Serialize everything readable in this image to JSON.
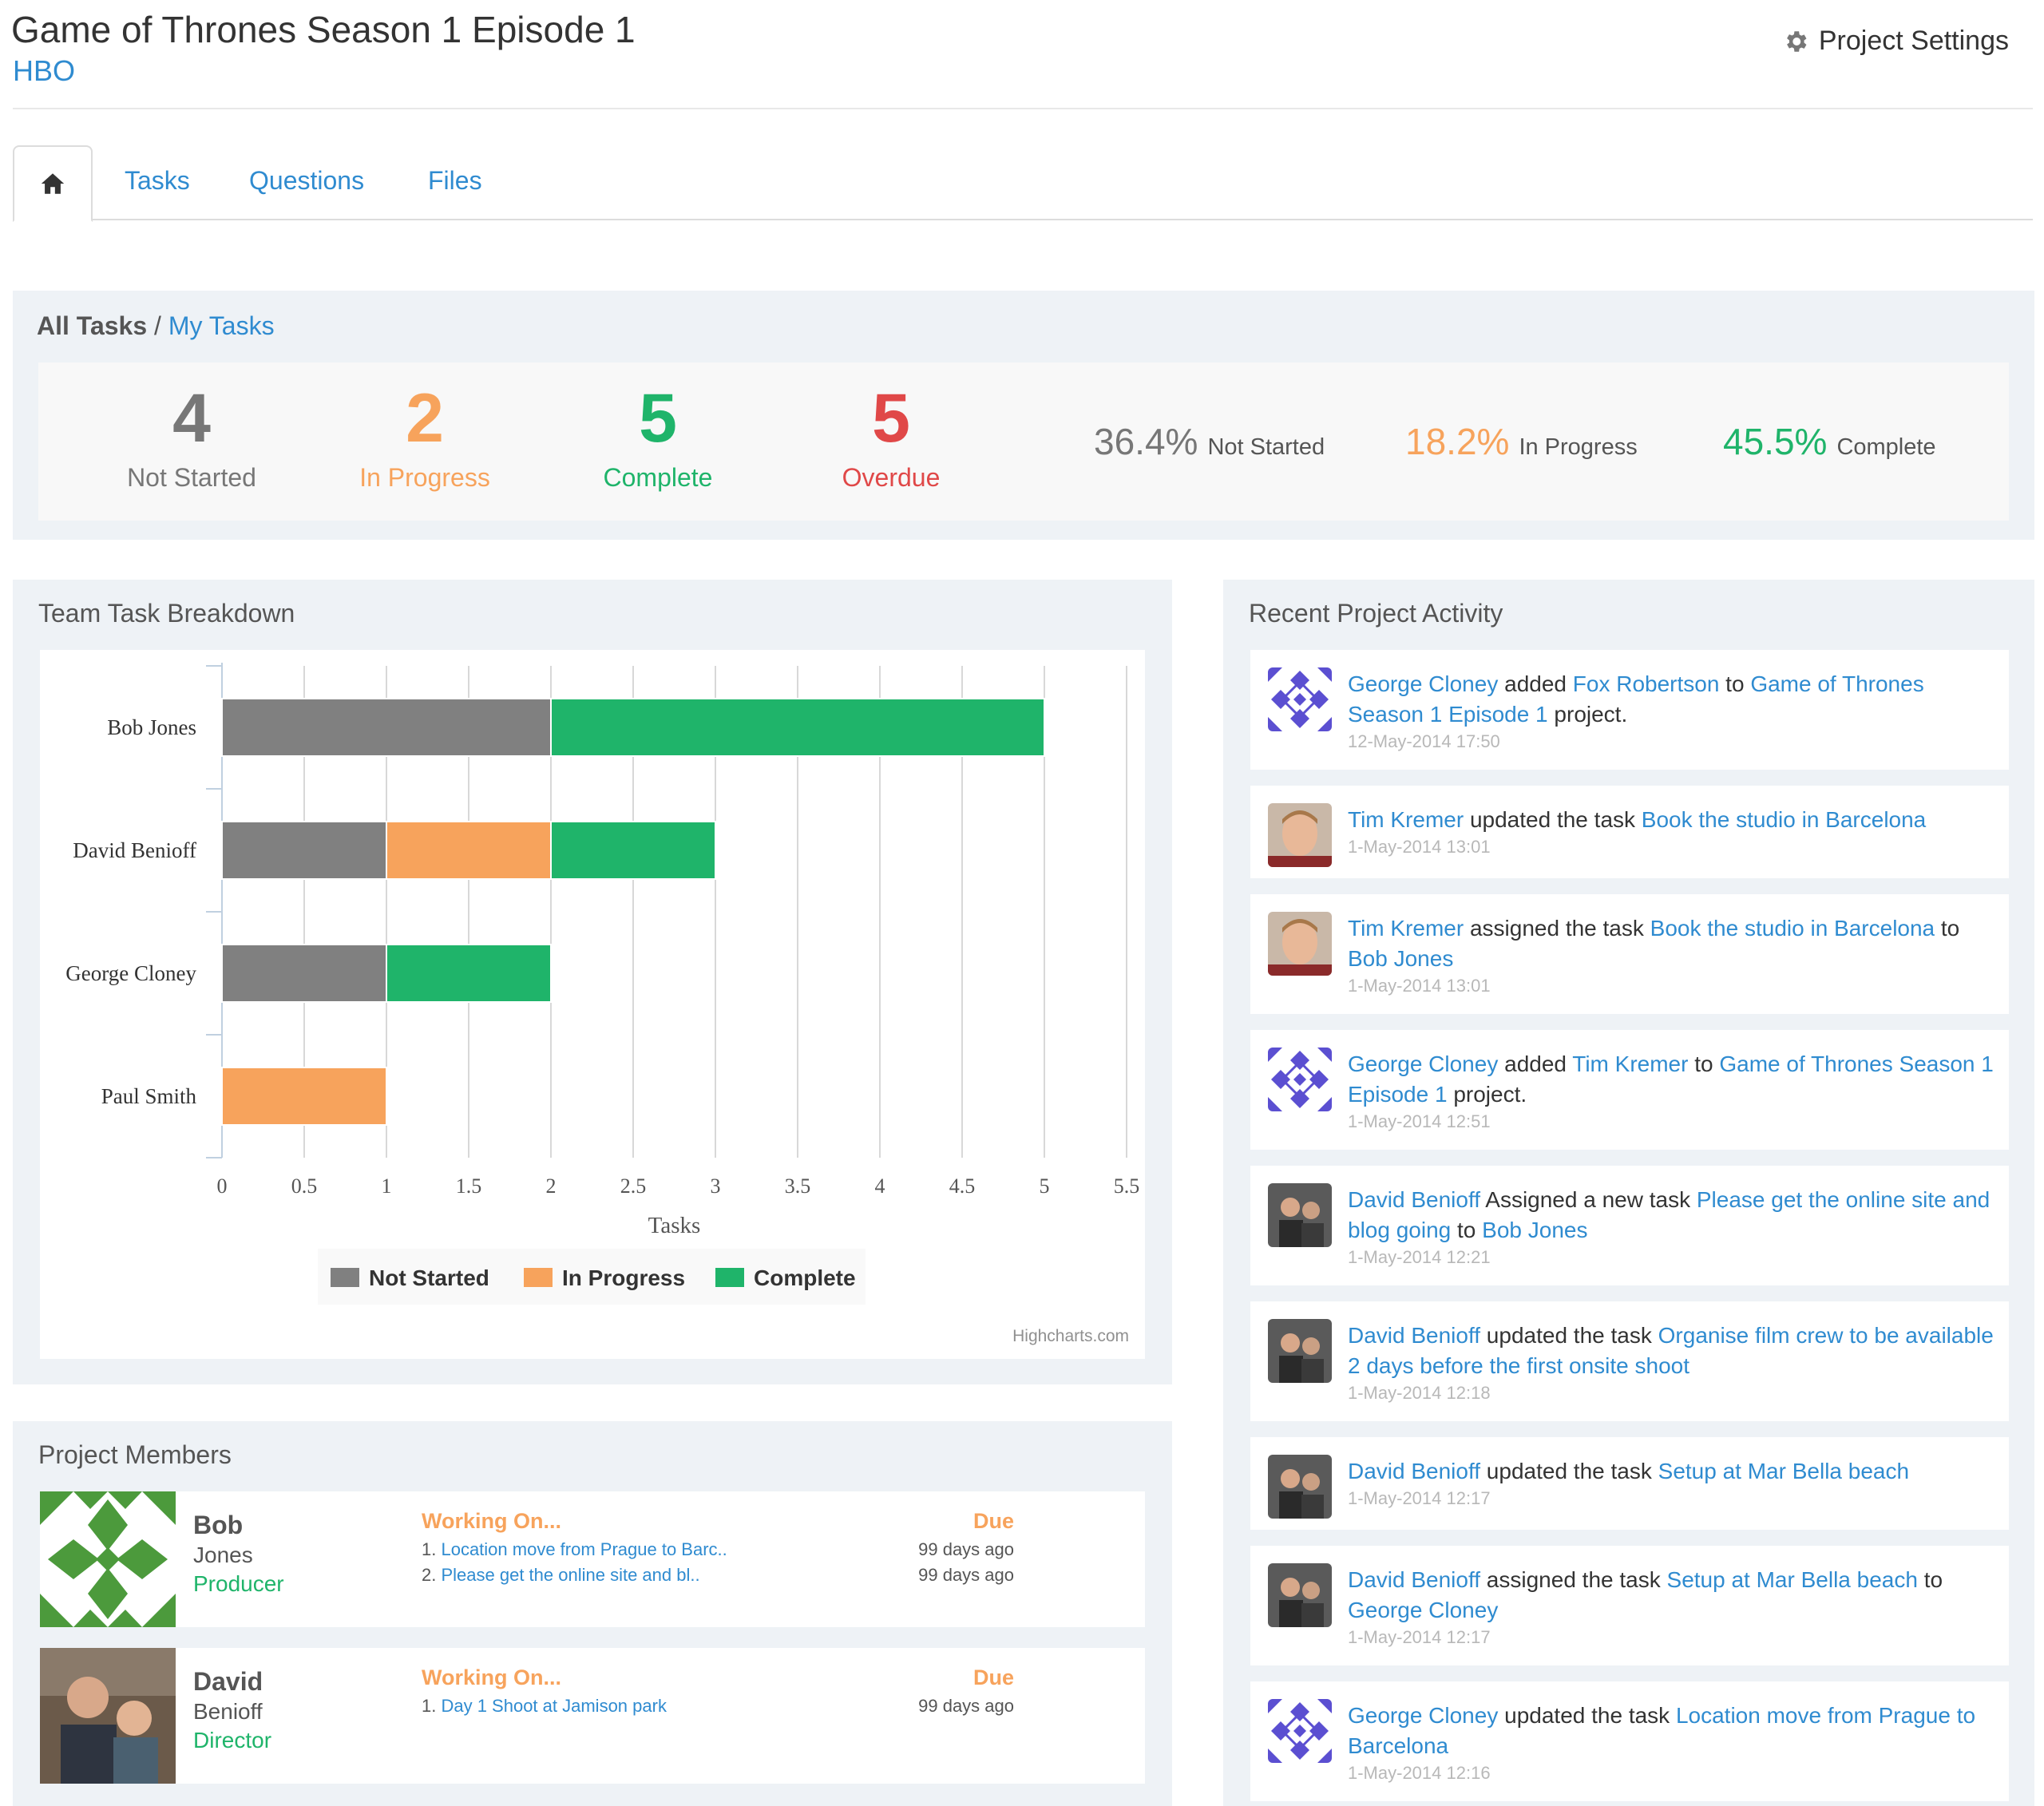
{
  "header": {
    "title": "Game of Thrones Season 1 Episode 1",
    "client": "HBO",
    "settings_label": "Project Settings"
  },
  "tabs": [
    {
      "label": "Tasks"
    },
    {
      "label": "Questions"
    },
    {
      "label": "Files"
    }
  ],
  "filter": {
    "all": "All Tasks",
    "sep": " / ",
    "mine": "My Tasks"
  },
  "stats": {
    "not_started": {
      "value": "4",
      "label": "Not Started"
    },
    "in_progress": {
      "value": "2",
      "label": "In Progress"
    },
    "complete": {
      "value": "5",
      "label": "Complete"
    },
    "overdue": {
      "value": "5",
      "label": "Overdue"
    }
  },
  "percents": {
    "not_started": {
      "value": "36.4%",
      "label": "Not Started"
    },
    "in_progress": {
      "value": "18.2%",
      "label": "In Progress"
    },
    "complete": {
      "value": "45.5%",
      "label": "Complete"
    }
  },
  "colors": {
    "not_started": "#808080",
    "in_progress": "#f7a35c",
    "complete": "#1fb46a",
    "overdue": "#e04848",
    "link": "#2f8bd0"
  },
  "chart_panel": {
    "title": "Team Task Breakdown",
    "credit": "Highcharts.com"
  },
  "chart_data": {
    "type": "bar",
    "stacked": true,
    "orientation": "horizontal",
    "categories": [
      "Bob Jones",
      "David Benioff",
      "George Cloney",
      "Paul Smith"
    ],
    "series": [
      {
        "name": "Not Started",
        "color": "#808080",
        "values": [
          2,
          1,
          1,
          0
        ]
      },
      {
        "name": "In Progress",
        "color": "#f7a35c",
        "values": [
          0,
          1,
          0,
          1
        ]
      },
      {
        "name": "Complete",
        "color": "#1fb46a",
        "values": [
          3,
          1,
          1,
          0
        ]
      }
    ],
    "xlabel": "Tasks",
    "xlim": [
      0,
      5.5
    ],
    "xticks": [
      "0",
      "0.5",
      "1",
      "1.5",
      "2",
      "2.5",
      "3",
      "3.5",
      "4",
      "4.5",
      "5",
      "5.5"
    ],
    "grid": true,
    "legend": "bottom-center"
  },
  "activity": {
    "title": "Recent Project Activity",
    "items": [
      {
        "avatar": "pattern",
        "parts": [
          [
            "George Cloney",
            true
          ],
          [
            " added ",
            false
          ],
          [
            "Fox Robertson",
            true
          ],
          [
            " to ",
            false
          ],
          [
            "Game of Thrones Season 1 Episode 1",
            true
          ],
          [
            " project.",
            false
          ]
        ],
        "time": "12-May-2014 17:50"
      },
      {
        "avatar": "photo",
        "parts": [
          [
            "Tim Kremer",
            true
          ],
          [
            " updated the task ",
            false
          ],
          [
            "Book the studio in Barcelona",
            true
          ]
        ],
        "time": "1-May-2014 13:01"
      },
      {
        "avatar": "photo",
        "parts": [
          [
            "Tim Kremer",
            true
          ],
          [
            " assigned the task ",
            false
          ],
          [
            "Book the studio in Barcelona",
            true
          ],
          [
            " to ",
            false
          ],
          [
            "Bob Jones",
            true
          ]
        ],
        "time": "1-May-2014 13:01"
      },
      {
        "avatar": "pattern",
        "parts": [
          [
            "George Cloney",
            true
          ],
          [
            " added ",
            false
          ],
          [
            "Tim Kremer",
            true
          ],
          [
            " to ",
            false
          ],
          [
            "Game of Thrones Season 1 Episode 1",
            true
          ],
          [
            " project.",
            false
          ]
        ],
        "time": "1-May-2014 12:51"
      },
      {
        "avatar": "photo2",
        "parts": [
          [
            "David Benioff",
            true
          ],
          [
            " Assigned a new task ",
            false
          ],
          [
            "Please get the online site and blog going",
            true
          ],
          [
            " to ",
            false
          ],
          [
            "Bob Jones",
            true
          ]
        ],
        "time": "1-May-2014 12:21"
      },
      {
        "avatar": "photo2",
        "parts": [
          [
            "David Benioff",
            true
          ],
          [
            " updated the task ",
            false
          ],
          [
            "Organise film crew to be available 2 days before the first onsite shoot",
            true
          ]
        ],
        "time": "1-May-2014 12:18"
      },
      {
        "avatar": "photo2",
        "parts": [
          [
            "David Benioff",
            true
          ],
          [
            " updated the task ",
            false
          ],
          [
            "Setup at Mar Bella beach",
            true
          ]
        ],
        "time": "1-May-2014 12:17"
      },
      {
        "avatar": "photo2",
        "parts": [
          [
            "David Benioff",
            true
          ],
          [
            " assigned the task ",
            false
          ],
          [
            "Setup at Mar Bella beach",
            true
          ],
          [
            " to ",
            false
          ],
          [
            "George Cloney",
            true
          ]
        ],
        "time": "1-May-2014 12:17"
      },
      {
        "avatar": "pattern",
        "parts": [
          [
            "George Cloney",
            true
          ],
          [
            " updated the task ",
            false
          ],
          [
            "Location move from Prague to Barcelona",
            true
          ]
        ],
        "time": "1-May-2014 12:16"
      }
    ]
  },
  "members": {
    "title": "Project Members",
    "working_label": "Working On...",
    "due_label": "Due",
    "list": [
      {
        "first": "Bob",
        "last": "Jones",
        "role": "Producer",
        "avatar": "green-pattern",
        "tasks": [
          {
            "num": "1.",
            "text": "Location move from Prague to Barc..",
            "due": "99 days ago"
          },
          {
            "num": "2.",
            "text": "Please get the online site and bl..",
            "due": "99 days ago"
          }
        ]
      },
      {
        "first": "David",
        "last": "Benioff",
        "role": "Director",
        "avatar": "photo",
        "tasks": [
          {
            "num": "1.",
            "text": "Day 1 Shoot at Jamison park",
            "due": "99 days ago"
          }
        ]
      }
    ]
  }
}
